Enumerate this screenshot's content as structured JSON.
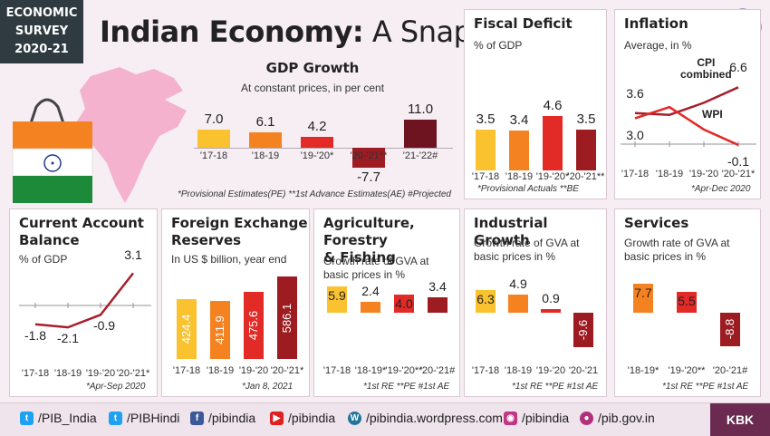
{
  "badge": {
    "line1": "ECONOMIC",
    "line2": "SURVEY",
    "line3": "2020-21"
  },
  "header": {
    "title_bold": "Indian Economy:",
    "title_rest": " A Snapshot"
  },
  "colors": {
    "yellow": "#f9c22e",
    "orange": "#f58220",
    "red": "#e22a27",
    "darkred": "#9c1c22",
    "maroon": "#6e1420",
    "line": "#a81e2a"
  },
  "panels": {
    "gdp": {
      "title": "GDP Growth",
      "subtitle": "At constant prices, in per cent",
      "footnote": "*Provisional Estimates(PE)  **1st Advance Estimates(AE)  #Projected"
    },
    "fiscal": {
      "title": "Fiscal Deficit",
      "subtitle": "% of GDP",
      "footnote": "*Provisional Actuals **BE"
    },
    "inflation": {
      "title": "Inflation",
      "subtitle": "Average, in %",
      "footnote": "*Apr-Dec 2020",
      "label_cpi_1": "CPI",
      "label_cpi_2": "combined",
      "label_wpi": "WPI"
    },
    "cab": {
      "title_1": "Current Account",
      "title_2": "Balance",
      "subtitle": "% of GDP",
      "footnote": "*Apr-Sep 2020"
    },
    "forex": {
      "title_1": "Foreign Exchange",
      "title_2": "Reserves",
      "subtitle": "In US $ billion, year end",
      "footnote": "*Jan 8, 2021"
    },
    "agri": {
      "title_1": "Agriculture, Forestry",
      "title_2": "& Fishing",
      "subtitle_1": "Growth rate of GVA at",
      "subtitle_2": "basic prices in %",
      "footnote": "*1st RE **PE  #1st AE"
    },
    "industry": {
      "title": "Industrial Growth",
      "subtitle_1": "Growth rate of GVA at",
      "subtitle_2": "basic prices in %",
      "footnote": "*1st RE **PE  #1st AE"
    },
    "services": {
      "title": "Services",
      "subtitle_1": "Growth rate of GVA at",
      "subtitle_2": "basic prices in %",
      "footnote": "*1st RE **PE  #1st AE"
    }
  },
  "chart_data": [
    {
      "id": "gdp",
      "type": "bar",
      "title": "GDP Growth",
      "categories": [
        "'17-18",
        "'18-19",
        "'19-'20*",
        "'20-'21**",
        "'21-'22#"
      ],
      "values": [
        7.0,
        6.1,
        4.2,
        -7.7,
        11.0
      ],
      "labels": [
        "7.0",
        "6.1",
        "4.2",
        "-7.7",
        "11.0"
      ],
      "colors": [
        "#f9c22e",
        "#f58220",
        "#e22a27",
        "#9c1c22",
        "#6e1420"
      ]
    },
    {
      "id": "fiscal",
      "type": "bar",
      "title": "Fiscal Deficit",
      "categories": [
        "'17-18",
        "'18-19",
        "'19-'20*",
        "'20-'21**"
      ],
      "values": [
        3.5,
        3.4,
        4.6,
        3.5
      ],
      "labels": [
        "3.5",
        "3.4",
        "4.6",
        "3.5"
      ],
      "colors": [
        "#f9c22e",
        "#f58220",
        "#e22a27",
        "#9c1c22"
      ]
    },
    {
      "id": "inflation",
      "type": "line",
      "title": "Inflation",
      "categories": [
        "'17-18",
        "'18-19",
        "'19-'20",
        "'20-'21*"
      ],
      "series": [
        {
          "name": "CPI combined",
          "values": [
            3.6,
            3.4,
            4.8,
            6.6
          ],
          "labels": [
            "3.6",
            "",
            "",
            "6.6"
          ]
        },
        {
          "name": "WPI",
          "values": [
            3.0,
            4.3,
            1.7,
            -0.1
          ],
          "labels": [
            "3.0",
            "",
            "",
            "-0.1"
          ]
        }
      ]
    },
    {
      "id": "cab",
      "type": "line",
      "title": "Current Account Balance",
      "categories": [
        "'17-18",
        "'18-19",
        "'19-'20",
        "'20-'21*"
      ],
      "values": [
        -1.8,
        -2.1,
        -0.9,
        3.1
      ],
      "labels": [
        "-1.8",
        "-2.1",
        "-0.9",
        "3.1"
      ]
    },
    {
      "id": "forex",
      "type": "bar",
      "title": "Foreign Exchange Reserves",
      "categories": [
        "'17-18",
        "'18-19",
        "'19-'20",
        "'20-'21*"
      ],
      "values": [
        424.4,
        411.9,
        475.6,
        586.1
      ],
      "labels": [
        "424.4",
        "411.9",
        "475.6",
        "586.1"
      ],
      "colors": [
        "#f9c22e",
        "#f58220",
        "#e22a27",
        "#9c1c22"
      ]
    },
    {
      "id": "agri",
      "type": "bar",
      "title": "Agriculture, Forestry & Fishing",
      "categories": [
        "'17-18",
        "'18-19*",
        "'19-'20**",
        "'20-'21#"
      ],
      "values": [
        5.9,
        2.4,
        4.0,
        3.4
      ],
      "labels": [
        "5.9",
        "2.4",
        "4.0",
        "3.4"
      ],
      "colors": [
        "#f9c22e",
        "#f58220",
        "#e22a27",
        "#9c1c22"
      ]
    },
    {
      "id": "industry",
      "type": "bar",
      "title": "Industrial Growth",
      "categories": [
        "'17-18",
        "'18-19",
        "'19-'20",
        "'20-'21"
      ],
      "values": [
        6.3,
        4.9,
        0.9,
        -9.6
      ],
      "labels": [
        "6.3",
        "4.9",
        "0.9",
        "-9.6"
      ],
      "colors": [
        "#f9c22e",
        "#f58220",
        "#e22a27",
        "#9c1c22"
      ]
    },
    {
      "id": "services",
      "type": "bar",
      "title": "Services",
      "categories": [
        "'18-19*",
        "'19-'20**",
        "'20-'21#"
      ],
      "values": [
        7.7,
        5.5,
        -8.8
      ],
      "labels": [
        "7.7",
        "5.5",
        "-8.8"
      ],
      "colors": [
        "#f58220",
        "#e22a27",
        "#9c1c22"
      ]
    }
  ],
  "footer": {
    "items": [
      {
        "label": "/PIB_India",
        "icon": "twitter-icon"
      },
      {
        "label": "/PIBHindi",
        "icon": "twitter-icon"
      },
      {
        "label": "/pibindia",
        "icon": "facebook-icon"
      },
      {
        "label": "/pibindia",
        "icon": "youtube-icon"
      },
      {
        "label": "/pibindia.wordpress.com",
        "icon": "wordpress-icon"
      },
      {
        "label": "/pibindia",
        "icon": "instagram-icon"
      },
      {
        "label": "/pib.gov.in",
        "icon": "web-icon"
      }
    ],
    "credit": "KBK"
  }
}
